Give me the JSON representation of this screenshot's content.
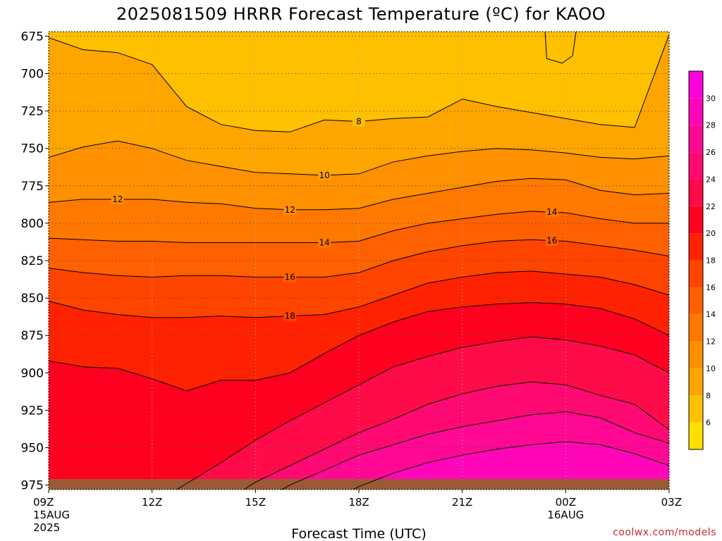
{
  "chart_data": {
    "type": "contour",
    "title": "2025081509 HRRR Forecast Temperature (ºC) for KAOO",
    "xlabel": "Forecast Time (UTC)",
    "ylabel": "",
    "x_ticks": [
      {
        "hour": 0,
        "label": "09Z",
        "sub1": "15AUG",
        "sub2": "2025"
      },
      {
        "hour": 3,
        "label": "12Z",
        "sub1": "",
        "sub2": ""
      },
      {
        "hour": 6,
        "label": "15Z",
        "sub1": "",
        "sub2": ""
      },
      {
        "hour": 9,
        "label": "18Z",
        "sub1": "",
        "sub2": ""
      },
      {
        "hour": 12,
        "label": "21Z",
        "sub1": "",
        "sub2": ""
      },
      {
        "hour": 15,
        "label": "00Z",
        "sub1": "16AUG",
        "sub2": ""
      },
      {
        "hour": 18,
        "label": "03Z",
        "sub1": "",
        "sub2": ""
      }
    ],
    "xlim_hours": [
      0,
      18
    ],
    "y_ticks": [
      675,
      700,
      725,
      750,
      775,
      800,
      825,
      850,
      875,
      900,
      925,
      950,
      975
    ],
    "ylim_hPa": [
      672,
      978
    ],
    "y_inverted": true,
    "grid": true,
    "colorbar": {
      "ticks": [
        6,
        8,
        10,
        12,
        14,
        16,
        18,
        20,
        22,
        24,
        26,
        28,
        30
      ],
      "levels": [
        4,
        6,
        8,
        10,
        12,
        14,
        16,
        18,
        20,
        22,
        24,
        26,
        28,
        30,
        32
      ],
      "colors": [
        "#ffde00",
        "#ffc000",
        "#ffa500",
        "#ff9000",
        "#ff7800",
        "#ff6000",
        "#ff4400",
        "#ff2200",
        "#ff0020",
        "#ff0b4a",
        "#ff0a72",
        "#ff0894",
        "#ff06b8",
        "#ff00dd"
      ]
    },
    "contour_x_hours": [
      0,
      1,
      2,
      3,
      4,
      5,
      6,
      7,
      8,
      9,
      10,
      11,
      12,
      13,
      14,
      15,
      16,
      17,
      18
    ],
    "contours": [
      {
        "level": 8,
        "label": "8",
        "label_at_hour": 9.0,
        "p": [
          676,
          684,
          686,
          694,
          722,
          734,
          738,
          739,
          731,
          732,
          730,
          729,
          717,
          722,
          726,
          730,
          734,
          736,
          674
        ]
      },
      {
        "level": 10,
        "label": "10",
        "label_at_hour": 8.0,
        "p": [
          756,
          749,
          745,
          750,
          758,
          762,
          766,
          767,
          768,
          767,
          759,
          755,
          752,
          750,
          751,
          753,
          756,
          757,
          755
        ]
      },
      {
        "level": 12,
        "label": "12",
        "label_at_hour": 2.0,
        "label2_at_hour": 7.0,
        "p": [
          786,
          784,
          784,
          784,
          786,
          787,
          790,
          791,
          791,
          790,
          784,
          780,
          776,
          772,
          770,
          771,
          778,
          781,
          780
        ]
      },
      {
        "level": 14,
        "label": "14",
        "label_at_hour": 8.0,
        "label2_at_hour": 14.6,
        "p": [
          810,
          811,
          812,
          812,
          813,
          813,
          813,
          813,
          813,
          812,
          805,
          800,
          797,
          794,
          792,
          793,
          797,
          800,
          800
        ]
      },
      {
        "level": 16,
        "label": "16",
        "label_at_hour": 7.0,
        "label2_at_hour": 14.6,
        "p": [
          830,
          833,
          835,
          836,
          835,
          835,
          836,
          836,
          836,
          833,
          825,
          819,
          815,
          812,
          811,
          812,
          815,
          818,
          822
        ]
      },
      {
        "level": 18,
        "label": "18",
        "label_at_hour": 7.0,
        "p": [
          852,
          858,
          861,
          863,
          863,
          862,
          863,
          862,
          861,
          856,
          848,
          840,
          836,
          833,
          832,
          834,
          836,
          841,
          848
        ]
      },
      {
        "level": 20,
        "label": "",
        "p": [
          892,
          896,
          897,
          904,
          912,
          905,
          905,
          900,
          887,
          875,
          866,
          859,
          856,
          854,
          853,
          854,
          857,
          864,
          875
        ]
      },
      {
        "level": 22,
        "label": "",
        "p": [
          null,
          null,
          null,
          null,
          974,
          960,
          945,
          932,
          920,
          908,
          896,
          889,
          883,
          879,
          876,
          878,
          882,
          888,
          900
        ]
      },
      {
        "level": 24,
        "label": "",
        "p": [
          null,
          null,
          null,
          null,
          null,
          null,
          973,
          962,
          951,
          940,
          931,
          921,
          914,
          909,
          906,
          908,
          915,
          921,
          938
        ]
      },
      {
        "level": 26,
        "label": "",
        "p": [
          null,
          null,
          null,
          null,
          null,
          null,
          null,
          975,
          965,
          955,
          948,
          941,
          936,
          932,
          928,
          926,
          930,
          940,
          947
        ]
      },
      {
        "level": 28,
        "label": "",
        "p": [
          null,
          null,
          null,
          null,
          null,
          null,
          null,
          null,
          null,
          976,
          967,
          960,
          955,
          951,
          948,
          946,
          948,
          954,
          962
        ]
      }
    ],
    "ground_hPa": 971
  },
  "credit": "coolwx.com/models"
}
